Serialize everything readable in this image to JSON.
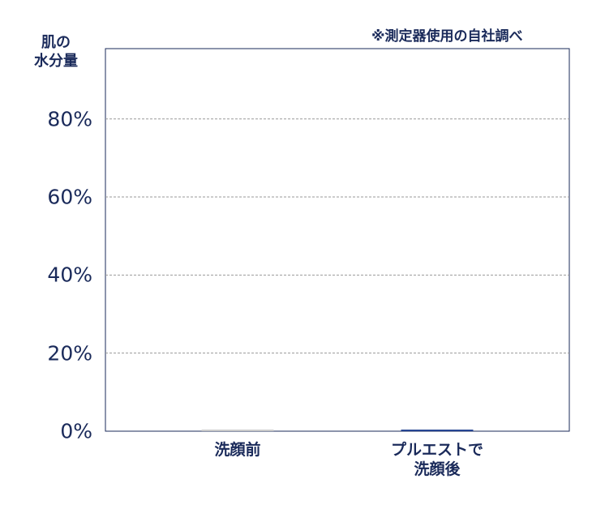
{
  "chart_data": {
    "type": "bar",
    "y_label": "肌の\n水分量",
    "note": "※測定器使用の自社調べ",
    "categories": [
      "洗顔前",
      "プルエストで\n洗顔後"
    ],
    "values": [
      0.4,
      0.4
    ],
    "colors": [
      "#c8c8c8",
      "#1f3f8f"
    ],
    "ylim": [
      0,
      98
    ],
    "yticks": [
      {
        "value": 0,
        "label": "0%"
      },
      {
        "value": 20,
        "label": "20%"
      },
      {
        "value": 40,
        "label": "40%"
      },
      {
        "value": 60,
        "label": "60%"
      },
      {
        "value": 80,
        "label": "80%"
      }
    ],
    "grid": true
  }
}
